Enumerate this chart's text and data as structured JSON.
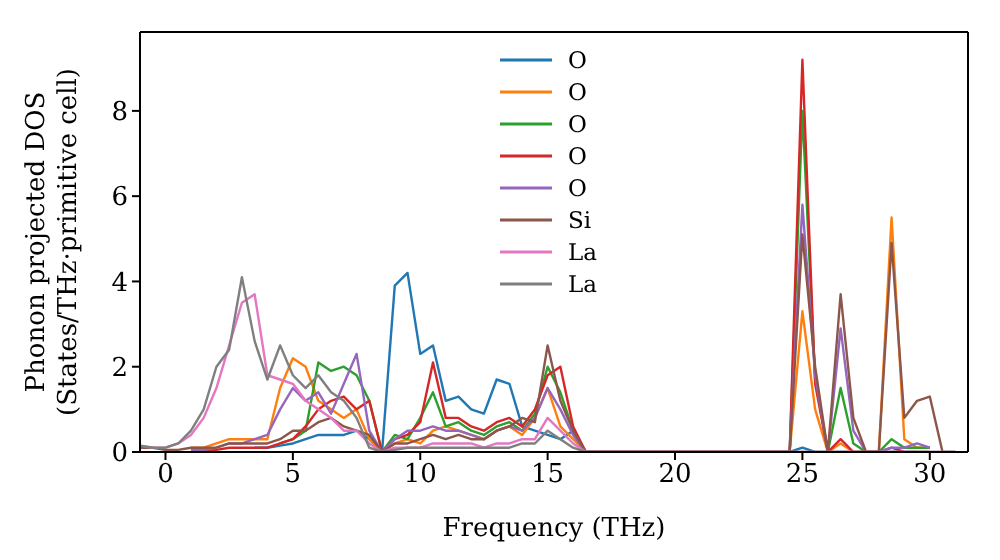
{
  "chart_data": {
    "type": "line",
    "xlabel": "Frequency (THz)",
    "ylabel": "Phonon projected DOS\n(States/THz·primitive cell)",
    "x": [
      -1,
      -0.5,
      0,
      0.5,
      1,
      1.5,
      2,
      2.5,
      3,
      3.5,
      4,
      4.5,
      5,
      5.5,
      6,
      6.5,
      7,
      7.5,
      8,
      8.5,
      9,
      9.5,
      10,
      10.5,
      11,
      11.5,
      12,
      12.5,
      13,
      13.5,
      14,
      14.5,
      15,
      15.5,
      16,
      16.5,
      17,
      17.5,
      18,
      18.5,
      19,
      19.5,
      20,
      20.5,
      21,
      21.5,
      22,
      22.5,
      23,
      23.5,
      24,
      24.5,
      25,
      25.5,
      26,
      26.5,
      27,
      27.5,
      28,
      28.5,
      29,
      29.5,
      30,
      30.5,
      31
    ],
    "xlim": [
      -1,
      31.5
    ],
    "xticks": [
      0,
      5,
      10,
      15,
      20,
      25,
      30
    ],
    "ylim": [
      0,
      9.85
    ],
    "yticks": [
      0,
      2,
      4,
      6,
      8
    ],
    "grid": false,
    "legend": "top",
    "marker": "none",
    "line_style": "solid",
    "series": [
      {
        "name": "O",
        "color": "#1f77b4",
        "values": [
          null,
          null,
          null,
          null,
          null,
          null,
          null,
          null,
          null,
          0.1,
          0.1,
          0.15,
          0.2,
          0.3,
          0.4,
          0.4,
          0.4,
          0.5,
          0.3,
          0,
          3.9,
          4.2,
          2.3,
          2.5,
          1.2,
          1.3,
          1.0,
          0.9,
          1.7,
          1.6,
          0.6,
          0.5,
          0.4,
          0.3,
          0.5,
          0,
          0,
          0,
          0,
          0,
          0,
          0,
          0,
          0,
          0,
          0,
          0,
          0,
          0,
          0,
          0,
          0,
          0.1,
          0,
          0,
          0,
          0,
          0,
          0,
          0,
          0,
          0,
          null,
          null,
          null
        ]
      },
      {
        "name": "O",
        "color": "#ff7f0e",
        "values": [
          null,
          null,
          null,
          null,
          0.1,
          0.1,
          0.2,
          0.3,
          0.3,
          0.3,
          0.3,
          1.5,
          2.2,
          2.0,
          1.2,
          1.0,
          0.8,
          1.0,
          0.3,
          0,
          0.2,
          0.3,
          0.2,
          0.5,
          0.6,
          0.5,
          0.4,
          0.3,
          0.5,
          0.6,
          0.4,
          0.8,
          1.5,
          0.6,
          0.3,
          0,
          0,
          0,
          0,
          0,
          0,
          0,
          0,
          0,
          0,
          0,
          0,
          0,
          0,
          0,
          0,
          0,
          3.3,
          1.0,
          0,
          0.2,
          0,
          0,
          0,
          5.5,
          0.3,
          0.1,
          0.1,
          null,
          null
        ]
      },
      {
        "name": "O",
        "color": "#2ca02c",
        "values": [
          null,
          null,
          null,
          null,
          null,
          null,
          null,
          null,
          null,
          null,
          null,
          0.2,
          0.3,
          0.5,
          2.1,
          1.9,
          2.0,
          1.8,
          1.2,
          0,
          0.4,
          0.3,
          0.8,
          1.4,
          0.6,
          0.7,
          0.5,
          0.4,
          0.6,
          0.7,
          0.5,
          0.9,
          2.0,
          1.4,
          0.5,
          0,
          0,
          0,
          0,
          0,
          0,
          0,
          0,
          0,
          0,
          0,
          0,
          0,
          0,
          0,
          0,
          0,
          8.0,
          1.7,
          0,
          1.5,
          0.2,
          0,
          0,
          0.3,
          0.1,
          0.1,
          0.1,
          null,
          null
        ]
      },
      {
        "name": "O",
        "color": "#d62728",
        "values": [
          null,
          null,
          null,
          null,
          0.05,
          0.05,
          0.05,
          0.1,
          0.1,
          0.1,
          0.1,
          0.2,
          0.3,
          0.6,
          1.0,
          1.2,
          1.3,
          1.0,
          1.2,
          0,
          0.3,
          0.4,
          0.7,
          2.1,
          0.8,
          0.8,
          0.6,
          0.5,
          0.7,
          0.8,
          0.6,
          1.0,
          1.8,
          2.0,
          0.6,
          0,
          0,
          0,
          0,
          0,
          0,
          0,
          0,
          0,
          0,
          0,
          0,
          0,
          0,
          0,
          0,
          0,
          9.2,
          1.6,
          0,
          0.3,
          0,
          0,
          0,
          0.1,
          0,
          0,
          0,
          null,
          null
        ]
      },
      {
        "name": "O",
        "color": "#9467bd",
        "values": [
          null,
          null,
          null,
          null,
          0.05,
          0.05,
          0.1,
          0.2,
          0.2,
          0.3,
          0.4,
          1.0,
          1.5,
          1.2,
          1.4,
          0.9,
          1.6,
          2.3,
          0.5,
          0,
          0.3,
          0.5,
          0.5,
          0.6,
          0.5,
          0.5,
          0.4,
          0.3,
          0.5,
          0.6,
          0.5,
          0.8,
          1.5,
          1.0,
          0.4,
          0,
          0,
          0,
          0,
          0,
          0,
          0,
          0,
          0,
          0,
          0,
          0,
          0,
          0,
          0,
          0,
          0,
          5.8,
          1.8,
          0,
          2.9,
          0.5,
          0,
          0,
          0.1,
          0.1,
          0.2,
          0.1,
          null,
          null
        ]
      },
      {
        "name": "Si",
        "color": "#8c564b",
        "values": [
          0.1,
          0.1,
          0.05,
          0.05,
          0.1,
          0.1,
          0.1,
          0.2,
          0.2,
          0.2,
          0.2,
          0.3,
          0.5,
          0.5,
          0.7,
          0.8,
          0.6,
          0.5,
          0.4,
          0,
          0.2,
          0.2,
          0.3,
          0.4,
          0.3,
          0.4,
          0.3,
          0.3,
          0.5,
          0.6,
          0.8,
          0.7,
          2.5,
          1.2,
          0.5,
          0,
          0,
          0,
          0,
          0,
          0,
          0,
          0,
          0,
          0,
          0,
          0,
          0,
          0,
          0,
          0,
          0,
          5.1,
          2.0,
          0,
          3.7,
          0.8,
          0,
          0,
          4.9,
          0.8,
          1.2,
          1.3,
          0,
          0
        ]
      },
      {
        "name": "La",
        "color": "#e377c2",
        "values": [
          0.15,
          0.1,
          0.1,
          0.2,
          0.4,
          0.8,
          1.5,
          2.5,
          3.5,
          3.7,
          1.8,
          1.7,
          1.6,
          1.2,
          1.0,
          0.8,
          0.5,
          0.5,
          0.2,
          0,
          0.1,
          0.1,
          0.1,
          0.2,
          0.2,
          0.2,
          0.2,
          0.1,
          0.2,
          0.2,
          0.3,
          0.3,
          0.8,
          0.5,
          0.2,
          0,
          0,
          0,
          0,
          0,
          0,
          0,
          0,
          0,
          0,
          0,
          0,
          0,
          0,
          0,
          0,
          0,
          0,
          0,
          0,
          0,
          0,
          0,
          0,
          0,
          0,
          0,
          0,
          0,
          0
        ]
      },
      {
        "name": "La",
        "color": "#7f7f7f",
        "values": [
          0.15,
          0.1,
          0.1,
          0.2,
          0.5,
          1.0,
          2.0,
          2.4,
          4.1,
          2.6,
          1.7,
          2.5,
          1.8,
          1.5,
          1.8,
          1.4,
          1.2,
          0.8,
          0.1,
          0,
          0.05,
          0.1,
          0.1,
          0.1,
          0.1,
          0.1,
          0.1,
          0.1,
          0.1,
          0.1,
          0.2,
          0.2,
          0.5,
          0.3,
          0.1,
          0,
          0,
          0,
          0,
          0,
          0,
          0,
          0,
          0,
          0,
          0,
          0,
          0,
          0,
          0,
          0,
          0,
          0,
          0,
          0,
          0,
          0,
          0,
          0,
          0,
          0,
          0,
          0,
          0,
          0
        ]
      }
    ]
  }
}
